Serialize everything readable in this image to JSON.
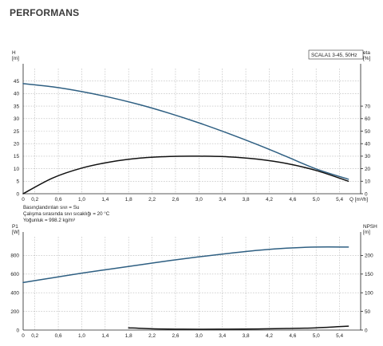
{
  "page": {
    "title": "PERFORMANS"
  },
  "legend": {
    "text": "SCALA1 3-45, 50Hz"
  },
  "notes": [
    "Basınçlandırılan sıvı = Su",
    "Çalışma sırasında sıvı sıcaklığı = 20 °C",
    "Yoğunluk = 998.2 kg/m³"
  ],
  "colors": {
    "head": "#2e5f82",
    "eta": "#111111",
    "p1": "#2e5f82",
    "npsh": "#111111"
  },
  "chart_data": [
    {
      "type": "line",
      "x_label": "Q",
      "x_unit": "[m³/h]",
      "x_ticks": [
        "0",
        "0,2",
        "0,6",
        "1,0",
        "1,4",
        "1,8",
        "2,2",
        "2,6",
        "3,0",
        "3,4",
        "3,8",
        "4,2",
        "4,6",
        "5,0",
        "5,4"
      ],
      "x_tick_values": [
        0,
        0.2,
        0.6,
        1.0,
        1.4,
        1.8,
        2.2,
        2.6,
        3.0,
        3.4,
        3.8,
        4.2,
        4.6,
        5.0,
        5.4
      ],
      "xlim": [
        0,
        5.76
      ],
      "y_left": {
        "label": "H",
        "unit": "[m]",
        "ticks": [
          0,
          5,
          10,
          15,
          20,
          25,
          30,
          35,
          40,
          45
        ],
        "lim": [
          0,
          50
        ]
      },
      "y_right": {
        "label": "eta",
        "unit": "[%]",
        "ticks": [
          0,
          10,
          20,
          30,
          40,
          50,
          60,
          70
        ],
        "lim": [
          0,
          100
        ]
      },
      "grid": true,
      "series": [
        {
          "axis": "left",
          "color": "#2e5f82",
          "x": [
            0,
            0.5,
            1.0,
            1.5,
            2.0,
            2.5,
            3.0,
            3.5,
            4.0,
            4.5,
            5.0,
            5.55
          ],
          "y": [
            44.0,
            42.7,
            40.8,
            38.4,
            35.5,
            32.1,
            28.3,
            24.1,
            19.6,
            14.8,
            9.9,
            5.8
          ]
        },
        {
          "axis": "right",
          "color": "#111111",
          "x": [
            0,
            0.5,
            1.0,
            1.5,
            2.0,
            2.5,
            3.0,
            3.5,
            4.0,
            4.5,
            5.0,
            5.55
          ],
          "y": [
            0,
            12.5,
            20.5,
            25.5,
            28.5,
            29.8,
            30.0,
            29.5,
            27.6,
            24.1,
            18.6,
            10.0
          ]
        }
      ]
    },
    {
      "type": "line",
      "x_ticks": [
        "0",
        "0,2",
        "0,6",
        "1,0",
        "1,4",
        "1,8",
        "2,2",
        "2,6",
        "3,0",
        "3,4",
        "3,8",
        "4,2",
        "4,6",
        "5,0",
        "5,4"
      ],
      "x_tick_values": [
        0,
        0.2,
        0.6,
        1.0,
        1.4,
        1.8,
        2.2,
        2.6,
        3.0,
        3.4,
        3.8,
        4.2,
        4.6,
        5.0,
        5.4
      ],
      "xlim": [
        0,
        5.76
      ],
      "y_left": {
        "label": "P1",
        "unit": "[W]",
        "ticks": [
          0,
          200,
          400,
          600,
          800
        ],
        "lim": [
          0,
          1000
        ]
      },
      "y_right": {
        "label": "NPSH",
        "unit": "[m]",
        "ticks": [
          0,
          50,
          100,
          150,
          200
        ],
        "lim": [
          0,
          250
        ]
      },
      "grid": true,
      "series": [
        {
          "axis": "left",
          "color": "#2e5f82",
          "x": [
            0,
            0.5,
            1.0,
            1.5,
            2.0,
            2.5,
            3.0,
            3.5,
            4.0,
            4.5,
            5.0,
            5.55
          ],
          "y": [
            510,
            560,
            610,
            655,
            700,
            745,
            785,
            822,
            855,
            878,
            890,
            890
          ]
        },
        {
          "axis": "right",
          "color": "#111111",
          "x": [
            1.8,
            2.2,
            2.6,
            3.0,
            3.5,
            4.0,
            4.5,
            5.0,
            5.55
          ],
          "y": [
            6.0,
            3.5,
            2.5,
            2.2,
            2.4,
            3.0,
            4.2,
            6.0,
            10.5
          ]
        }
      ]
    }
  ]
}
